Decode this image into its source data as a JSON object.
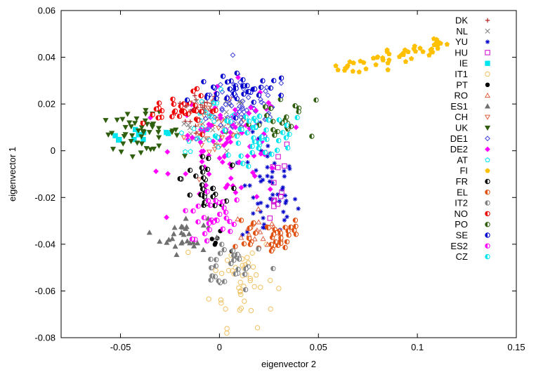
{
  "chart_data": {
    "type": "scatter",
    "xlabel": "eigenvector 2",
    "ylabel": "eigenvector 1",
    "xlim": [
      -0.08,
      0.15
    ],
    "ylim": [
      -0.08,
      0.06
    ],
    "x_ticks": [
      "-0.05",
      "0",
      "0.05",
      "0.1",
      "0.15"
    ],
    "x_tick_values": [
      -0.05,
      0,
      0.05,
      0.1,
      0.15
    ],
    "y_ticks": [
      "0.06",
      "0.04",
      "0.02",
      "0",
      "-0.02",
      "-0.04",
      "-0.06",
      "-0.08"
    ],
    "y_tick_values": [
      0.06,
      0.04,
      0.02,
      0,
      -0.02,
      -0.04,
      -0.06,
      -0.08
    ],
    "grid": false,
    "legend_position": "top-right",
    "series": [
      {
        "name": "DK",
        "color": "#b22222",
        "marker": "plus",
        "center": [
          -0.01,
          0.018
        ],
        "spread": [
          0.006,
          0.004
        ],
        "count": 30
      },
      {
        "name": "NL",
        "color": "#808080",
        "marker": "x",
        "center": [
          -0.002,
          0.012
        ],
        "spread": [
          0.008,
          0.006
        ],
        "count": 40
      },
      {
        "name": "YU",
        "color": "#0000cc",
        "marker": "asterisk",
        "center": [
          0.025,
          -0.018
        ],
        "spread": [
          0.007,
          0.012
        ],
        "count": 55
      },
      {
        "name": "HU",
        "color": "#cc00cc",
        "marker": "open-square",
        "center": [
          0.025,
          -0.012
        ],
        "spread": [
          0.006,
          0.01
        ],
        "count": 14
      },
      {
        "name": "IE",
        "color": "#00e5ee",
        "marker": "filled-square",
        "center": [
          -0.04,
          0.007
        ],
        "spread": [
          0.012,
          0.002
        ],
        "count": 10
      },
      {
        "name": "IT1",
        "color": "#f0c060",
        "marker": "open-circle",
        "center": [
          0.012,
          -0.055
        ],
        "spread": [
          0.008,
          0.01
        ],
        "count": 45
      },
      {
        "name": "PT",
        "color": "#000000",
        "marker": "filled-circle",
        "center": [
          -0.002,
          -0.039
        ],
        "spread": [
          0.003,
          0.002
        ],
        "count": 6
      },
      {
        "name": "RO",
        "color": "#e06040",
        "marker": "open-triangle",
        "center": [
          0.02,
          -0.034
        ],
        "spread": [
          0.006,
          0.004
        ],
        "count": 15
      },
      {
        "name": "ES1",
        "color": "#707070",
        "marker": "filled-triangle",
        "center": [
          -0.018,
          -0.036
        ],
        "spread": [
          0.006,
          0.004
        ],
        "count": 30
      },
      {
        "name": "CH",
        "color": "#e06040",
        "marker": "open-down-triangle",
        "center": [
          -0.002,
          0.008
        ],
        "spread": [
          0.008,
          0.006
        ],
        "count": 30
      },
      {
        "name": "UK",
        "color": "#2e5e0e",
        "marker": "filled-down-triangle",
        "center": [
          -0.04,
          0.008
        ],
        "spread": [
          0.01,
          0.004
        ],
        "count": 50
      },
      {
        "name": "DE1",
        "color": "#4040dd",
        "marker": "open-diamond",
        "center": [
          0.012,
          0.018
        ],
        "spread": [
          0.012,
          0.007
        ],
        "count": 70
      },
      {
        "name": "DE2",
        "color": "#ff00ff",
        "marker": "filled-diamond",
        "center": [
          0.005,
          0.002
        ],
        "spread": [
          0.014,
          0.012
        ],
        "count": 90
      },
      {
        "name": "AT",
        "color": "#00e5ee",
        "marker": "open-pentagon",
        "center": [
          -0.004,
          0.012
        ],
        "spread": [
          0.008,
          0.006
        ],
        "count": 25
      },
      {
        "name": "FI",
        "color": "#ffc000",
        "marker": "filled-pentagon",
        "center": [
          0.09,
          0.039
        ],
        "spread": [
          0.015,
          0.005
        ],
        "count": 55
      },
      {
        "name": "FR",
        "color": "#000000",
        "marker": "half-circle",
        "center": [
          -0.008,
          -0.015
        ],
        "spread": [
          0.006,
          0.006
        ],
        "count": 30
      },
      {
        "name": "EL",
        "color": "#e05010",
        "marker": "half-circle",
        "center": [
          0.025,
          -0.036
        ],
        "spread": [
          0.008,
          0.004
        ],
        "count": 40
      },
      {
        "name": "IT2",
        "color": "#808080",
        "marker": "half-circle",
        "center": [
          0.005,
          -0.049
        ],
        "spread": [
          0.008,
          0.005
        ],
        "count": 30
      },
      {
        "name": "NO",
        "color": "#ee0000",
        "marker": "half-circle",
        "center": [
          -0.018,
          0.018
        ],
        "spread": [
          0.007,
          0.004
        ],
        "count": 35
      },
      {
        "name": "PO",
        "color": "#2e5e0e",
        "marker": "half-circle",
        "center": [
          0.03,
          0.015
        ],
        "spread": [
          0.008,
          0.006
        ],
        "count": 25
      },
      {
        "name": "SE",
        "color": "#0000cc",
        "marker": "half-circle",
        "center": [
          0.012,
          0.025
        ],
        "spread": [
          0.01,
          0.004
        ],
        "count": 40
      },
      {
        "name": "ES2",
        "color": "#ff00ff",
        "marker": "half-circle",
        "center": [
          -0.004,
          -0.028
        ],
        "spread": [
          0.007,
          0.008
        ],
        "count": 30
      },
      {
        "name": "CZ",
        "color": "#00e5ee",
        "marker": "half-circle",
        "center": [
          0.018,
          0.008
        ],
        "spread": [
          0.01,
          0.006
        ],
        "count": 45
      }
    ]
  }
}
